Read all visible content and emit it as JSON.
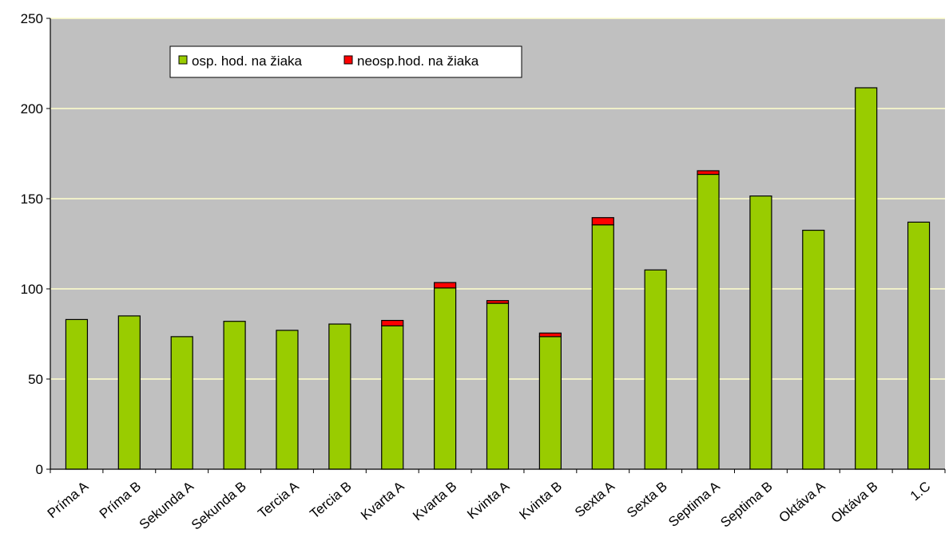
{
  "chart_data": {
    "type": "bar",
    "stacked": true,
    "categories": [
      "Príma A",
      "Príma B",
      "Sekunda A",
      "Sekunda B",
      "Tercia A",
      "Tercia B",
      "Kvarta A",
      "Kvarta B",
      "Kvinta A",
      "Kvinta B",
      "Sexta A",
      "Sexta B",
      "Septima A",
      "Septima B",
      "Oktáva A",
      "Oktáva B",
      "1.C"
    ],
    "series": [
      {
        "name": "osp. hod. na žiaka",
        "color": "#99cc00",
        "values": [
          83,
          85,
          73.5,
          82,
          77,
          80.5,
          79.5,
          100.5,
          92,
          73.5,
          135.5,
          110.5,
          163.5,
          151.5,
          132.5,
          211.5,
          137
        ]
      },
      {
        "name": "neosp.hod. na žiaka",
        "color": "#ff0000",
        "values": [
          0,
          0,
          0,
          0,
          0,
          0,
          3,
          3,
          1.5,
          2,
          4,
          0,
          2,
          0,
          0,
          0,
          0
        ]
      }
    ],
    "ylim": [
      0,
      250
    ],
    "yticks": [
      0,
      50,
      100,
      150,
      200,
      250
    ],
    "grid": true,
    "grid_color": "#ffffcc",
    "plot_background": "#c0c0c0",
    "legend_position": "top-left"
  }
}
